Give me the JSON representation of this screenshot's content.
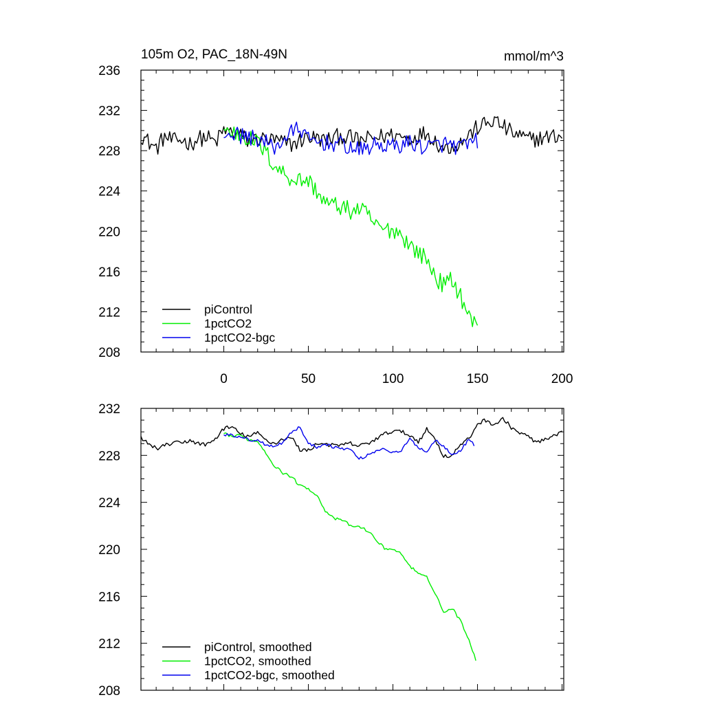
{
  "title": "105m O2, PAC_18N-49N",
  "units": "mmol/m^3",
  "chart_data": [
    {
      "type": "line",
      "title": "105m O2, PAC_18N-49N",
      "units": "mmol/m^3",
      "xlim": [
        -49,
        201
      ],
      "ylim": [
        208,
        236
      ],
      "xticks": [
        0,
        50,
        100,
        150,
        200
      ],
      "yticks": [
        208,
        212,
        216,
        220,
        224,
        228,
        232,
        236
      ],
      "grid": false,
      "legend_position": "bottom-left",
      "series": [
        {
          "name": "piControl",
          "color": "#000000",
          "anchors": [
            [
              -49,
              229.6
            ],
            [
              -44,
              228.8
            ],
            [
              -40,
              228.2
            ],
            [
              -35,
              229.4
            ],
            [
              -30,
              228.9
            ],
            [
              -25,
              229.1
            ],
            [
              -20,
              228.7
            ],
            [
              -15,
              229.2
            ],
            [
              -10,
              229.3
            ],
            [
              -5,
              228.8
            ],
            [
              0,
              230.0
            ],
            [
              5,
              229.8
            ],
            [
              10,
              229.5
            ],
            [
              15,
              228.9
            ],
            [
              20,
              229.2
            ],
            [
              30,
              229.0
            ],
            [
              40,
              228.6
            ],
            [
              50,
              229.4
            ],
            [
              60,
              229.0
            ],
            [
              70,
              229.5
            ],
            [
              80,
              229.0
            ],
            [
              90,
              229.3
            ],
            [
              100,
              229.6
            ],
            [
              110,
              229.2
            ],
            [
              120,
              229.8
            ],
            [
              130,
              228.2
            ],
            [
              140,
              228.8
            ],
            [
              150,
              230.3
            ],
            [
              160,
              231.0
            ],
            [
              170,
              229.8
            ],
            [
              180,
              229.1
            ],
            [
              190,
              229.3
            ],
            [
              200,
              229.5
            ]
          ],
          "noise": 0.85
        },
        {
          "name": "1pctCO2",
          "color": "#00ee00",
          "anchors": [
            [
              0,
              230.0
            ],
            [
              10,
              229.6
            ],
            [
              20,
              228.8
            ],
            [
              25,
              227.8
            ],
            [
              30,
              226.5
            ],
            [
              40,
              225.2
            ],
            [
              50,
              225.0
            ],
            [
              55,
              224.0
            ],
            [
              60,
              222.8
            ],
            [
              70,
              222.4
            ],
            [
              75,
              222.0
            ],
            [
              80,
              222.2
            ],
            [
              85,
              221.6
            ],
            [
              90,
              220.5
            ],
            [
              95,
              220.1
            ],
            [
              100,
              220.2
            ],
            [
              105,
              219.7
            ],
            [
              110,
              218.6
            ],
            [
              115,
              217.9
            ],
            [
              120,
              217.2
            ],
            [
              125,
              215.5
            ],
            [
              130,
              214.6
            ],
            [
              135,
              215.2
            ],
            [
              140,
              213.6
            ],
            [
              145,
              211.5
            ],
            [
              150,
              210.4
            ]
          ],
          "noise": 0.9
        },
        {
          "name": "1pctCO2-bgc",
          "color": "#0000ee",
          "anchors": [
            [
              0,
              229.8
            ],
            [
              10,
              229.5
            ],
            [
              20,
              229.2
            ],
            [
              30,
              228.3
            ],
            [
              40,
              229.8
            ],
            [
              45,
              230.3
            ],
            [
              50,
              229.0
            ],
            [
              60,
              228.8
            ],
            [
              70,
              228.6
            ],
            [
              80,
              228.0
            ],
            [
              90,
              228.6
            ],
            [
              100,
              228.4
            ],
            [
              110,
              228.8
            ],
            [
              120,
              228.3
            ],
            [
              130,
              228.7
            ],
            [
              140,
              228.3
            ],
            [
              150,
              229.0
            ]
          ],
          "noise": 0.85
        }
      ]
    },
    {
      "type": "line",
      "xlim": [
        -49,
        201
      ],
      "ylim": [
        208,
        232
      ],
      "yticks": [
        208,
        212,
        216,
        220,
        224,
        228,
        232
      ],
      "grid": false,
      "legend_position": "bottom-left",
      "series": [
        {
          "name": "piControl, smoothed",
          "color": "#000000",
          "anchors": [
            [
              -49,
              229.5
            ],
            [
              -45,
              229.0
            ],
            [
              -40,
              228.6
            ],
            [
              -35,
              228.8
            ],
            [
              -30,
              229.1
            ],
            [
              -25,
              229.0
            ],
            [
              -20,
              229.3
            ],
            [
              -15,
              229.0
            ],
            [
              -10,
              228.9
            ],
            [
              -5,
              229.4
            ],
            [
              0,
              230.3
            ],
            [
              5,
              230.4
            ],
            [
              10,
              229.8
            ],
            [
              15,
              229.6
            ],
            [
              20,
              229.9
            ],
            [
              25,
              229.3
            ],
            [
              30,
              229.0
            ],
            [
              35,
              229.4
            ],
            [
              40,
              229.5
            ],
            [
              45,
              228.5
            ],
            [
              50,
              228.4
            ],
            [
              55,
              229.0
            ],
            [
              60,
              229.0
            ],
            [
              65,
              228.8
            ],
            [
              70,
              228.9
            ],
            [
              75,
              229.0
            ],
            [
              80,
              228.8
            ],
            [
              85,
              229.0
            ],
            [
              90,
              229.4
            ],
            [
              95,
              229.8
            ],
            [
              100,
              230.1
            ],
            [
              105,
              230.0
            ],
            [
              110,
              229.7
            ],
            [
              115,
              229.2
            ],
            [
              120,
              230.2
            ],
            [
              125,
              229.4
            ],
            [
              130,
              227.9
            ],
            [
              135,
              228.0
            ],
            [
              140,
              228.9
            ],
            [
              145,
              229.4
            ],
            [
              150,
              230.7
            ],
            [
              155,
              231.0
            ],
            [
              160,
              230.6
            ],
            [
              165,
              231.1
            ],
            [
              170,
              230.4
            ],
            [
              175,
              229.9
            ],
            [
              180,
              229.6
            ],
            [
              185,
              229.1
            ],
            [
              190,
              229.3
            ],
            [
              195,
              229.6
            ],
            [
              200,
              229.9
            ]
          ],
          "noise": 0.18
        },
        {
          "name": "1pctCO2, smoothed",
          "color": "#00ee00",
          "anchors": [
            [
              0,
              229.9
            ],
            [
              5,
              229.6
            ],
            [
              10,
              229.7
            ],
            [
              15,
              229.3
            ],
            [
              20,
              229.2
            ],
            [
              25,
              228.2
            ],
            [
              30,
              227.1
            ],
            [
              35,
              226.5
            ],
            [
              40,
              226.2
            ],
            [
              45,
              225.4
            ],
            [
              50,
              225.2
            ],
            [
              55,
              224.6
            ],
            [
              60,
              223.3
            ],
            [
              65,
              222.6
            ],
            [
              70,
              222.5
            ],
            [
              75,
              222.0
            ],
            [
              80,
              221.9
            ],
            [
              85,
              221.6
            ],
            [
              90,
              220.8
            ],
            [
              95,
              220.1
            ],
            [
              100,
              220.0
            ],
            [
              105,
              219.6
            ],
            [
              110,
              218.6
            ],
            [
              115,
              217.9
            ],
            [
              120,
              217.6
            ],
            [
              125,
              216.3
            ],
            [
              130,
              214.6
            ],
            [
              135,
              215.0
            ],
            [
              140,
              213.9
            ],
            [
              145,
              212.3
            ],
            [
              149,
              210.6
            ]
          ],
          "noise": 0.12
        },
        {
          "name": "1pctCO2-bgc, smoothed",
          "color": "#0000ee",
          "anchors": [
            [
              0,
              229.8
            ],
            [
              5,
              229.7
            ],
            [
              10,
              229.6
            ],
            [
              15,
              229.3
            ],
            [
              20,
              229.3
            ],
            [
              25,
              228.9
            ],
            [
              30,
              228.8
            ],
            [
              35,
              229.1
            ],
            [
              40,
              230.0
            ],
            [
              45,
              230.4
            ],
            [
              50,
              229.0
            ],
            [
              55,
              228.7
            ],
            [
              60,
              229.0
            ],
            [
              65,
              228.7
            ],
            [
              70,
              228.6
            ],
            [
              75,
              228.5
            ],
            [
              80,
              227.7
            ],
            [
              85,
              228.0
            ],
            [
              90,
              228.4
            ],
            [
              95,
              228.6
            ],
            [
              100,
              228.2
            ],
            [
              105,
              228.4
            ],
            [
              110,
              229.4
            ],
            [
              115,
              228.7
            ],
            [
              120,
              228.3
            ],
            [
              125,
              229.3
            ],
            [
              130,
              228.8
            ],
            [
              135,
              228.1
            ],
            [
              140,
              228.4
            ],
            [
              145,
              229.4
            ],
            [
              148,
              228.9
            ]
          ],
          "noise": 0.12
        }
      ]
    }
  ]
}
